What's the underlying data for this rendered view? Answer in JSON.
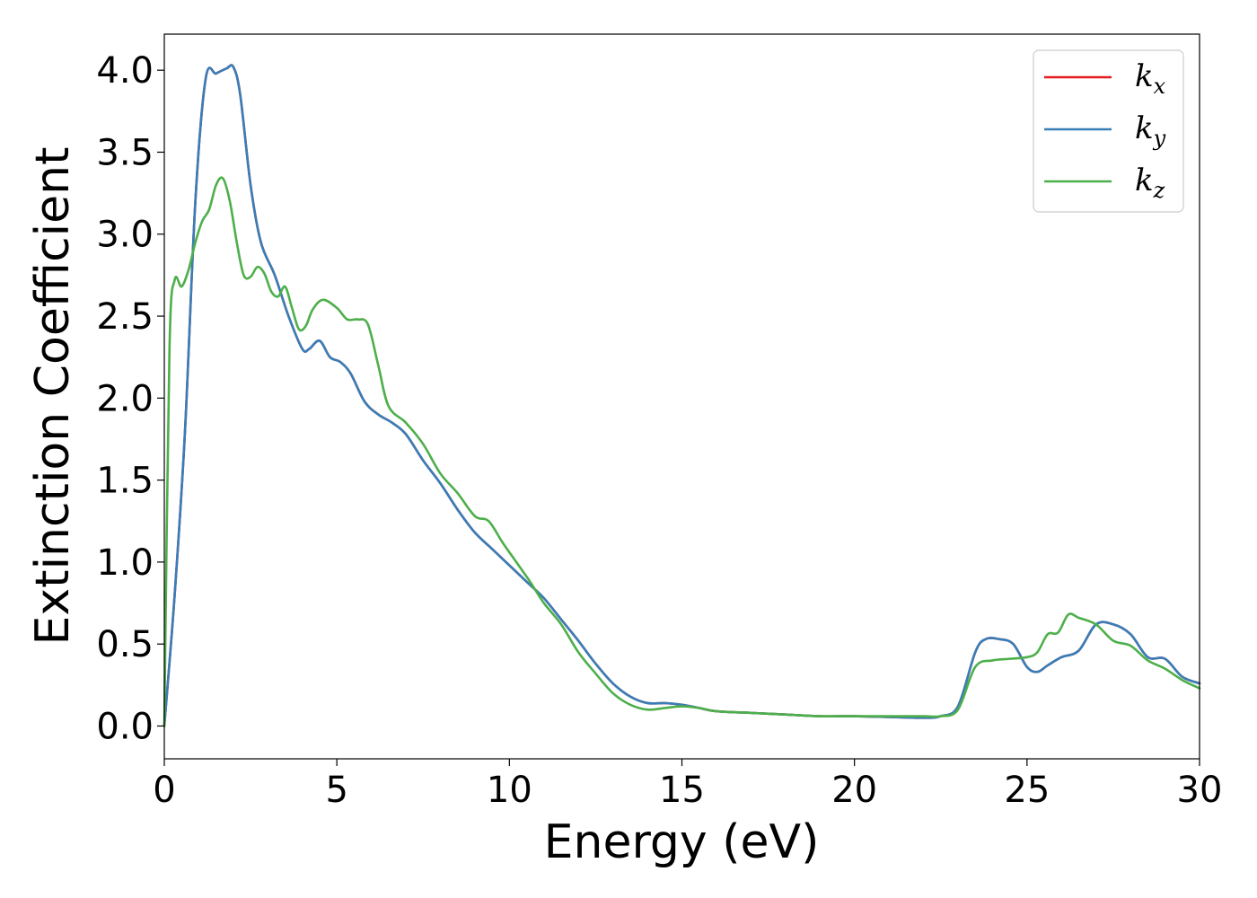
{
  "chart_data": {
    "type": "line",
    "title": "",
    "xlabel": "Energy (eV)",
    "ylabel": "Extinction Coefficient",
    "xlim": [
      0,
      30
    ],
    "ylim": [
      -0.2,
      4.22
    ],
    "xticks": [
      0,
      5,
      10,
      15,
      20,
      25,
      30
    ],
    "xtick_labels": [
      "0",
      "5",
      "10",
      "15",
      "20",
      "25",
      "30"
    ],
    "yticks": [
      0.0,
      0.5,
      1.0,
      1.5,
      2.0,
      2.5,
      3.0,
      3.5,
      4.0
    ],
    "ytick_labels": [
      "0.0",
      "0.5",
      "1.0",
      "1.5",
      "2.0",
      "2.5",
      "3.0",
      "3.5",
      "4.0"
    ],
    "grid": false,
    "legend_position": "top-right",
    "series": [
      {
        "name": "k",
        "subscript": "x",
        "color": "#e41a1c",
        "x": [
          0,
          0.3,
          0.6,
          0.9,
          1.2,
          1.5,
          1.8,
          2.0,
          2.2,
          2.5,
          2.8,
          3.2,
          3.6,
          4.0,
          4.2,
          4.5,
          4.8,
          5.1,
          5.4,
          5.8,
          6.2,
          6.6,
          7.0,
          7.5,
          8.0,
          8.5,
          9.0,
          9.5,
          10.0,
          10.5,
          11.0,
          11.5,
          12.0,
          12.5,
          13.0,
          13.5,
          14.0,
          14.5,
          15.0,
          15.5,
          16.0,
          17.0,
          18.0,
          19.0,
          20.0,
          21.0,
          22.0,
          22.5,
          23.0,
          23.5,
          23.8,
          24.2,
          24.6,
          25.0,
          25.3,
          25.6,
          26.0,
          26.5,
          27.0,
          27.5,
          28.0,
          28.5,
          29.0,
          29.5,
          30.0
        ],
        "y": [
          0.0,
          0.8,
          1.8,
          3.2,
          3.95,
          3.98,
          4.01,
          4.02,
          3.85,
          3.3,
          2.95,
          2.75,
          2.5,
          2.3,
          2.3,
          2.35,
          2.25,
          2.22,
          2.15,
          1.98,
          1.9,
          1.85,
          1.78,
          1.62,
          1.48,
          1.32,
          1.18,
          1.08,
          0.98,
          0.88,
          0.78,
          0.65,
          0.52,
          0.38,
          0.26,
          0.18,
          0.14,
          0.14,
          0.13,
          0.11,
          0.09,
          0.08,
          0.07,
          0.06,
          0.06,
          0.055,
          0.05,
          0.06,
          0.12,
          0.45,
          0.53,
          0.53,
          0.5,
          0.36,
          0.33,
          0.37,
          0.42,
          0.46,
          0.62,
          0.62,
          0.56,
          0.42,
          0.41,
          0.3,
          0.26
        ]
      },
      {
        "name": "k",
        "subscript": "y",
        "color": "#377eb8",
        "x": [
          0,
          0.3,
          0.6,
          0.9,
          1.2,
          1.5,
          1.8,
          2.0,
          2.2,
          2.5,
          2.8,
          3.2,
          3.6,
          4.0,
          4.2,
          4.5,
          4.8,
          5.1,
          5.4,
          5.8,
          6.2,
          6.6,
          7.0,
          7.5,
          8.0,
          8.5,
          9.0,
          9.5,
          10.0,
          10.5,
          11.0,
          11.5,
          12.0,
          12.5,
          13.0,
          13.5,
          14.0,
          14.5,
          15.0,
          15.5,
          16.0,
          17.0,
          18.0,
          19.0,
          20.0,
          21.0,
          22.0,
          22.5,
          23.0,
          23.5,
          23.8,
          24.2,
          24.6,
          25.0,
          25.3,
          25.6,
          26.0,
          26.5,
          27.0,
          27.5,
          28.0,
          28.5,
          29.0,
          29.5,
          30.0
        ],
        "y": [
          0.0,
          0.8,
          1.8,
          3.2,
          3.95,
          3.98,
          4.01,
          4.02,
          3.85,
          3.3,
          2.95,
          2.75,
          2.5,
          2.3,
          2.3,
          2.35,
          2.25,
          2.22,
          2.15,
          1.98,
          1.9,
          1.85,
          1.78,
          1.62,
          1.48,
          1.32,
          1.18,
          1.08,
          0.98,
          0.88,
          0.78,
          0.65,
          0.52,
          0.38,
          0.26,
          0.18,
          0.14,
          0.14,
          0.13,
          0.11,
          0.09,
          0.08,
          0.07,
          0.06,
          0.06,
          0.055,
          0.05,
          0.06,
          0.12,
          0.45,
          0.53,
          0.53,
          0.5,
          0.36,
          0.33,
          0.37,
          0.42,
          0.46,
          0.62,
          0.62,
          0.56,
          0.42,
          0.41,
          0.3,
          0.26
        ]
      },
      {
        "name": "k",
        "subscript": "z",
        "color": "#4daf4a",
        "x": [
          0,
          0.15,
          0.3,
          0.5,
          0.7,
          0.9,
          1.1,
          1.3,
          1.5,
          1.7,
          1.9,
          2.1,
          2.3,
          2.5,
          2.7,
          2.9,
          3.1,
          3.3,
          3.5,
          3.7,
          3.9,
          4.1,
          4.3,
          4.6,
          5.0,
          5.3,
          5.6,
          5.9,
          6.2,
          6.5,
          7.0,
          7.5,
          8.0,
          8.5,
          9.0,
          9.4,
          9.8,
          10.2,
          10.6,
          11.0,
          11.5,
          12.0,
          12.5,
          13.0,
          13.5,
          14.0,
          14.5,
          15.0,
          15.5,
          16.0,
          17.0,
          18.0,
          19.0,
          20.0,
          21.0,
          22.0,
          22.5,
          23.0,
          23.5,
          24.0,
          24.5,
          25.0,
          25.3,
          25.6,
          25.9,
          26.2,
          26.5,
          27.0,
          27.5,
          28.0,
          28.5,
          29.0,
          29.5,
          30.0
        ],
        "y": [
          0.0,
          2.3,
          2.72,
          2.68,
          2.78,
          2.95,
          3.08,
          3.15,
          3.3,
          3.34,
          3.2,
          2.95,
          2.75,
          2.74,
          2.8,
          2.76,
          2.65,
          2.62,
          2.68,
          2.55,
          2.42,
          2.44,
          2.54,
          2.6,
          2.55,
          2.48,
          2.48,
          2.45,
          2.2,
          1.95,
          1.85,
          1.72,
          1.54,
          1.42,
          1.28,
          1.25,
          1.12,
          1.0,
          0.88,
          0.75,
          0.62,
          0.45,
          0.32,
          0.2,
          0.13,
          0.1,
          0.11,
          0.12,
          0.11,
          0.09,
          0.08,
          0.07,
          0.06,
          0.06,
          0.06,
          0.06,
          0.06,
          0.1,
          0.36,
          0.4,
          0.41,
          0.42,
          0.45,
          0.56,
          0.57,
          0.68,
          0.66,
          0.62,
          0.52,
          0.49,
          0.4,
          0.35,
          0.28,
          0.23
        ]
      }
    ]
  }
}
